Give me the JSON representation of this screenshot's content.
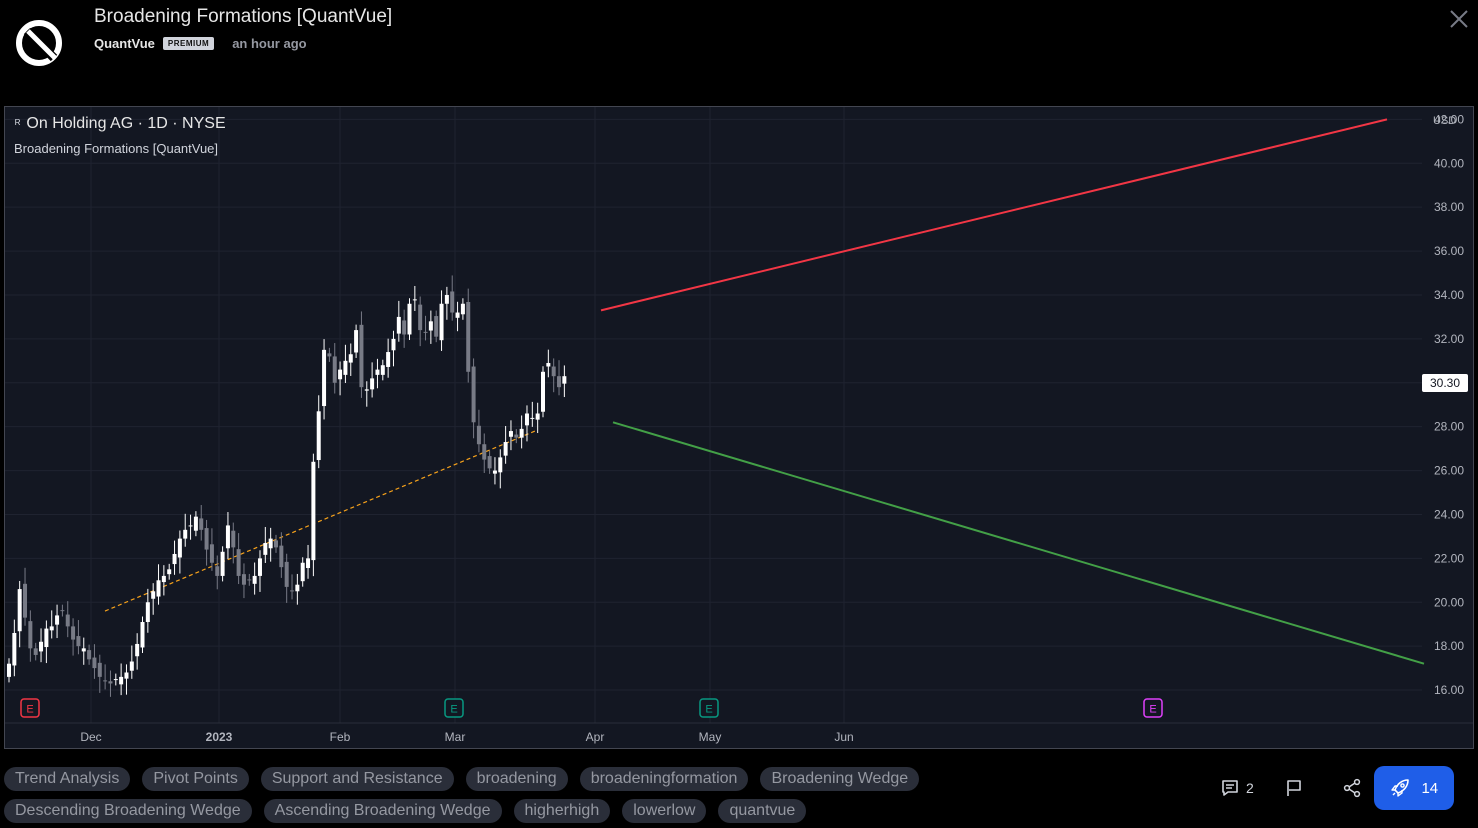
{
  "header": {
    "title": "Broadening Formations [QuantVue]",
    "author": "QuantVue",
    "badge": "PREMIUM",
    "time": "an hour ago"
  },
  "chart": {
    "symbol": "On Holding AG · 1D · NYSE",
    "indicator": "Broadening Formations [QuantVue]",
    "currency": "USD",
    "last_price": "30.30",
    "earnings_marker": "E"
  },
  "chart_data": {
    "type": "candlestick",
    "x_ticks": [
      "Dec",
      "2023",
      "Feb",
      "Mar",
      "Apr",
      "May",
      "Jun"
    ],
    "y_ticks": [
      "16.00",
      "18.00",
      "20.00",
      "22.00",
      "24.00",
      "26.00",
      "28.00",
      "30.00",
      "32.00",
      "34.00",
      "36.00",
      "38.00",
      "40.00",
      "42.00"
    ],
    "ylim": [
      15.0,
      42.2
    ],
    "close_path": [
      17.2,
      18.6,
      20.6,
      19.3,
      17.9,
      17.6,
      18.2,
      18.8,
      18.9,
      19.4,
      19.6,
      18.9,
      18.3,
      18.0,
      17.9,
      17.4,
      17.0,
      16.6,
      16.4,
      16.3,
      16.5,
      16.6,
      16.8,
      17.3,
      18.1,
      19.1,
      20.0,
      20.5,
      21.0,
      21.2,
      21.5,
      22.2,
      22.9,
      23.3,
      23.5,
      23.9,
      23.3,
      22.4,
      21.8,
      21.2,
      22.3,
      23.5,
      22.5,
      21.2,
      20.8,
      21.0,
      21.2,
      22.0,
      22.7,
      22.9,
      22.5,
      21.6,
      20.7,
      20.5,
      20.8,
      21.8,
      22.0,
      26.4,
      28.7,
      31.5,
      31.2,
      30.0,
      30.6,
      31.0,
      31.3,
      32.4,
      29.8,
      29.7,
      30.2,
      30.6,
      30.8,
      31.4,
      32.0,
      33.0,
      32.2,
      33.6,
      33.8,
      32.4,
      32.3,
      32.8,
      32.1,
      33.6,
      34.0,
      33.2,
      33.2,
      33.6,
      30.5,
      28.2,
      27.2,
      26.5,
      26.1,
      26.0,
      26.6,
      27.3,
      27.8,
      27.5,
      27.9,
      28.6,
      28.4,
      28.6,
      30.5,
      30.9,
      30.3,
      29.8,
      30.3
    ],
    "trend_lines": [
      {
        "style": "resistance",
        "color": "#f23645",
        "from": [
          "Apr",
          33.3
        ],
        "to": [
          "Jul",
          42.0
        ]
      },
      {
        "style": "support",
        "color": "#43a047",
        "from": [
          "Apr",
          28.2
        ],
        "to": [
          "Jul",
          17.2
        ]
      },
      {
        "style": "prior-trend",
        "color": "#f7a21b",
        "from": [
          "Dec",
          19.6
        ],
        "to": [
          "Mar",
          27.8
        ]
      }
    ],
    "earnings_markers": [
      {
        "at": "Nov",
        "color": "#f23645"
      },
      {
        "at": "Mar",
        "color": "#089981"
      },
      {
        "at": "May",
        "color": "#089981"
      },
      {
        "at": "Aug",
        "color": "#e040fb"
      }
    ],
    "candle_up_color": "#ffffff",
    "candle_down_color": "#787b86",
    "grid": true
  },
  "tags": [
    "Trend Analysis",
    "Pivot Points",
    "Support and Resistance",
    "broadening",
    "broadeningformation",
    "Broadening Wedge",
    "Descending Broadening Wedge",
    "Ascending Broadening Wedge",
    "higherhigh",
    "lowerlow",
    "quantvue"
  ],
  "actions": {
    "comments_count": "2",
    "boosts_count": "14"
  }
}
